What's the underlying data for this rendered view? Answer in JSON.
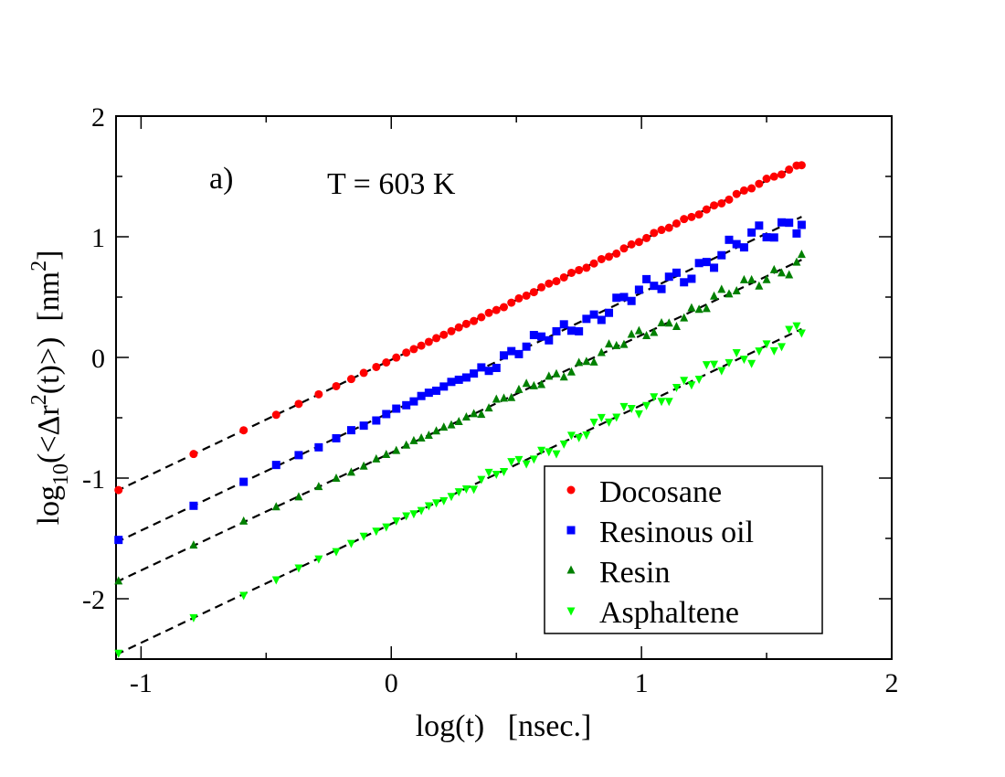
{
  "chart_data": {
    "type": "scatter",
    "panel_label": "a)",
    "annotation": "T = 603 K",
    "xlabel": "log(t)   [nsec.]",
    "ylabel": {
      "prefix": "log",
      "subscript": "10",
      "open": "(<Δr",
      "superscript": "2",
      "close": "(t)>)  [nm",
      "unit_superscript": "2",
      "end": "]"
    },
    "xlim": [
      -1.1,
      2
    ],
    "ylim": [
      -2.5,
      2
    ],
    "xticks": [
      -1,
      0,
      1,
      2
    ],
    "xtick_labels": [
      "-1",
      "0",
      "1",
      "2"
    ],
    "yticks": [
      -2,
      -1,
      0,
      1,
      2
    ],
    "ytick_labels": [
      "-2",
      "-1",
      "0",
      "1",
      "2"
    ],
    "legend_position": "lower-right",
    "series": [
      {
        "name": "Docosane",
        "color": "#ff0000",
        "marker": "circle",
        "fit": {
          "slope": 0.99,
          "intercept": -0.02
        },
        "noise": 0.004
      },
      {
        "name": "Resinous oil",
        "color": "#0000ff",
        "marker": "square",
        "fit": {
          "slope": 0.985,
          "intercept": -0.45
        },
        "noise": 0.03
      },
      {
        "name": "Resin",
        "color": "#008000",
        "marker": "triangle-up",
        "fit": {
          "slope": 0.975,
          "intercept": -0.79
        },
        "noise": 0.02
      },
      {
        "name": "Asphaltene",
        "color": "#00ff00",
        "marker": "triangle-down",
        "fit": {
          "slope": 0.985,
          "intercept": -1.38
        },
        "noise": 0.025
      }
    ],
    "x_sample": [
      -1.09,
      -0.79,
      -0.59,
      -0.46,
      -0.37,
      -0.29,
      -0.22,
      -0.16,
      -0.11,
      -0.06,
      -0.02,
      0.02,
      0.06,
      0.09,
      0.12,
      0.15,
      0.18,
      0.21,
      0.24,
      0.27,
      0.3,
      0.33,
      0.36,
      0.39,
      0.42,
      0.45,
      0.48,
      0.51,
      0.54,
      0.57,
      0.6,
      0.63,
      0.66,
      0.69,
      0.72,
      0.75,
      0.78,
      0.81,
      0.84,
      0.87,
      0.9,
      0.93,
      0.96,
      0.99,
      1.02,
      1.05,
      1.08,
      1.11,
      1.14,
      1.17,
      1.2,
      1.23,
      1.26,
      1.29,
      1.32,
      1.35,
      1.38,
      1.41,
      1.44,
      1.47,
      1.5,
      1.53,
      1.56,
      1.59,
      1.62,
      1.64
    ],
    "fit_range": [
      -1.1,
      1.64
    ],
    "fit_style": "dashed black"
  }
}
